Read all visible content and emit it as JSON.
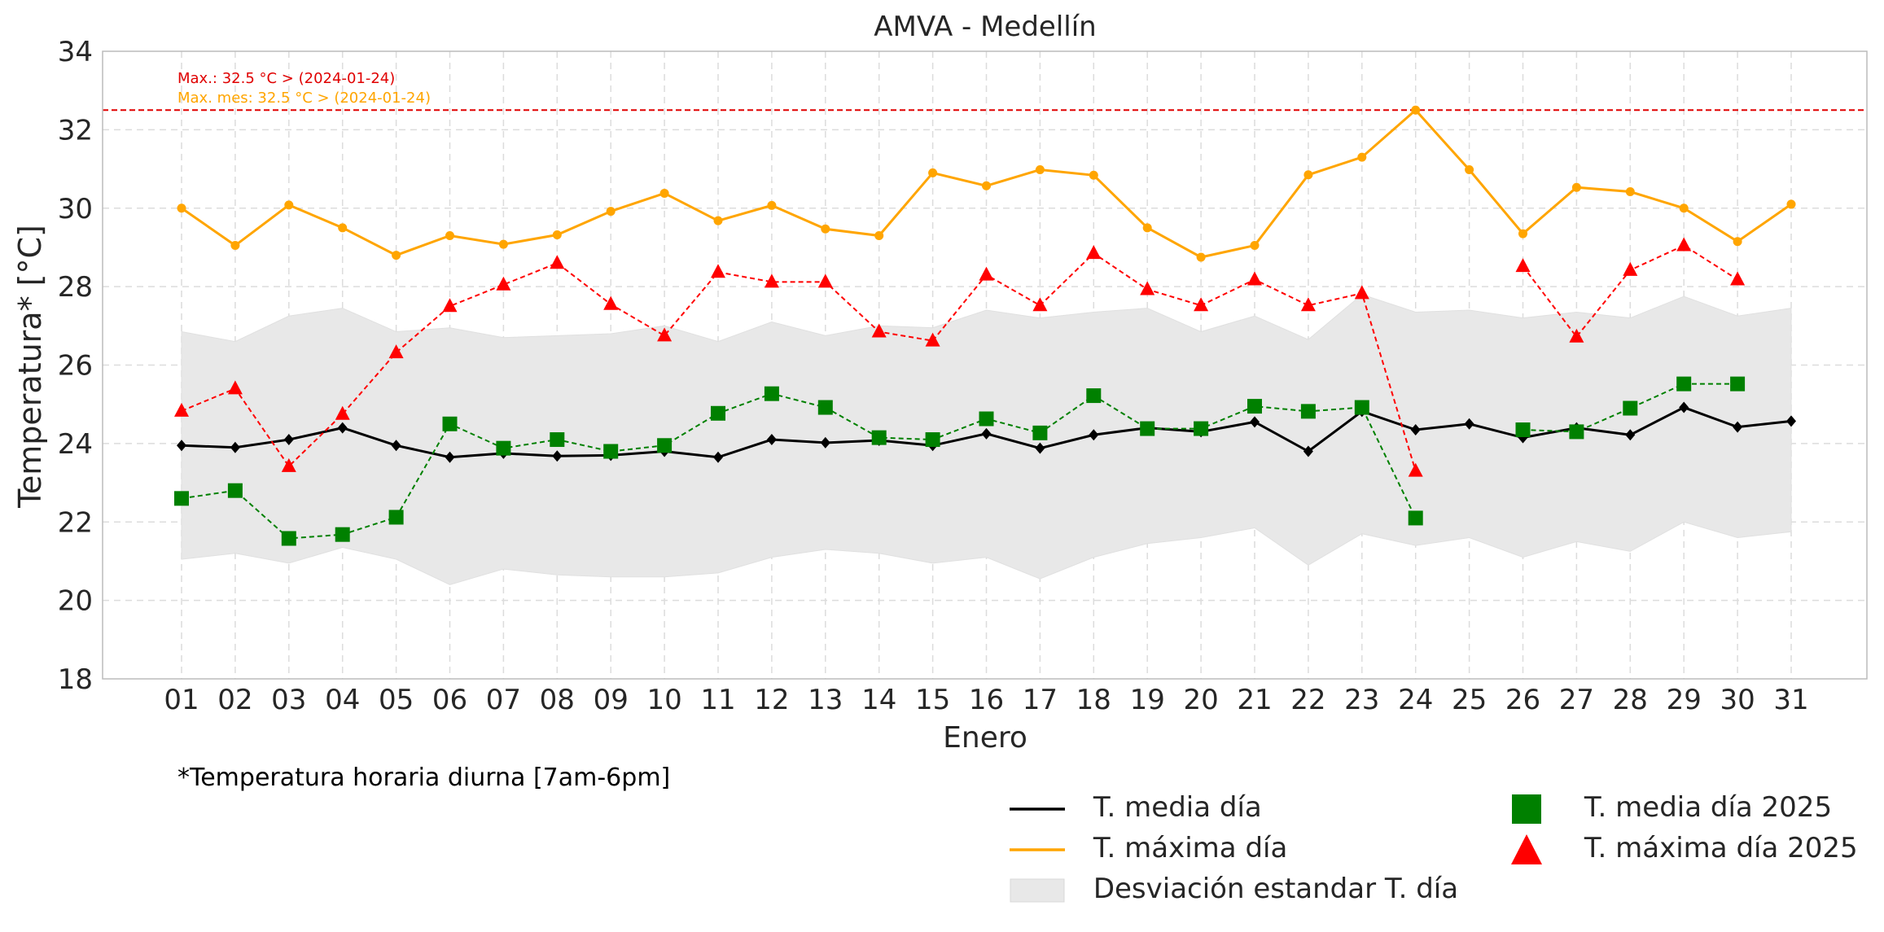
{
  "chart_data": {
    "type": "line",
    "title": "AMVA - Medellín",
    "xlabel": "Enero",
    "ylabel": "Temperatura* [°C]",
    "ylim": [
      18,
      34
    ],
    "yticks": [
      18,
      20,
      22,
      24,
      26,
      28,
      30,
      32,
      34
    ],
    "categories": [
      "01",
      "02",
      "03",
      "04",
      "05",
      "06",
      "07",
      "08",
      "09",
      "10",
      "11",
      "12",
      "13",
      "14",
      "15",
      "16",
      "17",
      "18",
      "19",
      "20",
      "21",
      "22",
      "23",
      "24",
      "25",
      "26",
      "27",
      "28",
      "29",
      "30",
      "31"
    ],
    "grid": true,
    "reference_line": {
      "value": 32.5,
      "color": "#e00000"
    },
    "annotations": [
      {
        "text": "Max.: 32.5 °C  >  (2024-01-24)",
        "color": "#e00000"
      },
      {
        "text": "Max. mes: 32.5 °C  >  (2024-01-24)",
        "color": "#ffa500"
      }
    ],
    "band": {
      "name": "Desviación estandar T. día",
      "color": "#e8e8e8",
      "upper": [
        26.85,
        26.6,
        27.25,
        27.45,
        26.85,
        26.95,
        26.7,
        26.75,
        26.8,
        27.0,
        26.6,
        27.1,
        26.75,
        27.0,
        26.95,
        27.4,
        27.2,
        27.35,
        27.45,
        26.85,
        27.25,
        26.65,
        27.8,
        27.35,
        27.4,
        27.2,
        27.35,
        27.2,
        27.75,
        27.25,
        27.45
      ],
      "lower": [
        21.05,
        21.2,
        20.95,
        21.35,
        21.05,
        20.4,
        20.8,
        20.65,
        20.6,
        20.6,
        20.7,
        21.1,
        21.3,
        21.2,
        20.95,
        21.1,
        20.55,
        21.1,
        21.45,
        21.6,
        21.85,
        20.9,
        21.7,
        21.4,
        21.6,
        21.1,
        21.5,
        21.25,
        22.0,
        21.6,
        21.75
      ]
    },
    "series": [
      {
        "name": "T. media día",
        "color": "#000000",
        "marker": "diamond",
        "dash": false,
        "values": [
          23.95,
          23.9,
          24.1,
          24.4,
          23.95,
          23.65,
          23.75,
          23.68,
          23.7,
          23.8,
          23.65,
          24.1,
          24.02,
          24.08,
          23.95,
          24.25,
          23.88,
          24.22,
          24.4,
          24.3,
          24.55,
          23.8,
          24.82,
          24.35,
          24.5,
          24.15,
          24.4,
          24.22,
          24.92,
          24.42,
          24.57
        ]
      },
      {
        "name": "T. máxima día",
        "color": "#ffa500",
        "marker": "circle",
        "dash": false,
        "values": [
          30.0,
          29.05,
          30.08,
          29.5,
          28.8,
          29.3,
          29.08,
          29.32,
          29.92,
          30.38,
          29.68,
          30.07,
          29.47,
          29.3,
          30.9,
          30.57,
          30.98,
          30.84,
          29.5,
          28.75,
          29.05,
          30.85,
          31.3,
          32.5,
          30.98,
          29.35,
          30.53,
          30.42,
          30.0,
          29.15,
          30.1
        ]
      },
      {
        "name": "T. media día 2025",
        "color": "#008000",
        "marker": "square",
        "dash": true,
        "values": [
          22.6,
          22.8,
          21.58,
          21.68,
          22.12,
          24.5,
          23.88,
          24.1,
          23.8,
          23.95,
          24.77,
          25.27,
          24.92,
          24.15,
          24.1,
          24.63,
          24.27,
          25.22,
          24.38,
          24.38,
          24.95,
          24.82,
          24.92,
          22.1,
          null,
          24.35,
          24.3,
          24.9,
          25.52,
          25.52,
          null
        ]
      },
      {
        "name": "T. máxima día 2025",
        "color": "#ff0000",
        "marker": "triangle",
        "dash": true,
        "values": [
          24.83,
          25.4,
          23.42,
          24.75,
          26.32,
          27.5,
          28.05,
          28.6,
          27.55,
          26.75,
          28.37,
          28.12,
          28.12,
          26.85,
          26.62,
          28.3,
          27.52,
          28.85,
          27.93,
          27.52,
          28.18,
          27.52,
          27.83,
          23.3,
          null,
          28.52,
          26.72,
          28.42,
          29.05,
          28.18,
          null
        ]
      }
    ],
    "legend_placement": "bottom-right"
  },
  "footnote": "*Temperatura horaria diurna [7am-6pm]"
}
